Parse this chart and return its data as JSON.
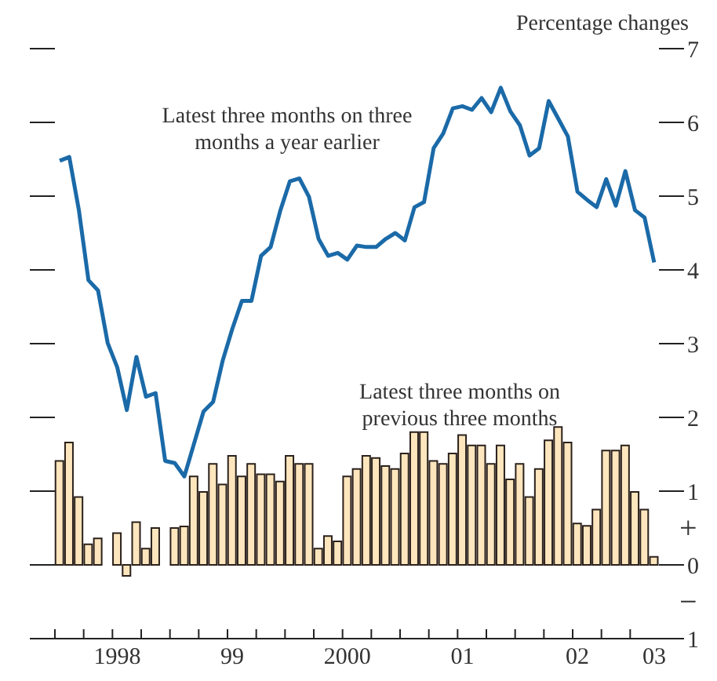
{
  "chart_data": {
    "type": "bar",
    "ylabel": "Percentage changes",
    "categories": [
      null,
      null,
      null,
      null,
      null,
      null,
      "1998",
      null,
      null,
      null,
      null,
      null,
      null,
      null,
      null,
      null,
      null,
      null,
      "99",
      null,
      null,
      null,
      null,
      null,
      null,
      null,
      null,
      null,
      null,
      null,
      "2000",
      null,
      null,
      null,
      null,
      null,
      null,
      null,
      null,
      null,
      null,
      null,
      "01",
      null,
      null,
      null,
      null,
      null,
      null,
      null,
      null,
      null,
      null,
      null,
      "02",
      null,
      null,
      null,
      null,
      null,
      null,
      null,
      "03"
    ],
    "series": [
      {
        "name": "Latest three months on previous three months",
        "color": "#fde6bd",
        "values": [
          1.41,
          1.66,
          0.92,
          0.28,
          0.36,
          null,
          0.43,
          -0.15,
          0.58,
          0.22,
          0.5,
          null,
          0.5,
          0.52,
          1.2,
          0.99,
          1.37,
          1.09,
          1.48,
          1.2,
          1.37,
          1.23,
          1.23,
          1.13,
          1.48,
          1.37,
          1.37,
          0.22,
          0.39,
          0.32,
          1.2,
          1.3,
          1.48,
          1.45,
          1.34,
          1.3,
          1.51,
          1.8,
          1.8,
          1.41,
          1.37,
          1.51,
          1.76,
          1.62,
          1.62,
          1.37,
          1.62,
          1.16,
          1.37,
          0.92,
          1.3,
          1.69,
          1.87,
          1.66,
          0.56,
          0.53,
          0.75,
          1.55,
          1.55,
          1.62,
          0.99,
          0.75,
          0.11
        ]
      },
      {
        "name": "Latest three months on three months a year earlier",
        "type": "line",
        "color": "#1b6aa8",
        "values": [
          5.48,
          5.53,
          4.81,
          3.86,
          3.72,
          3.01,
          2.68,
          2.1,
          2.82,
          2.28,
          2.33,
          1.41,
          1.38,
          1.2,
          1.64,
          2.08,
          2.21,
          2.77,
          3.2,
          3.58,
          3.58,
          4.19,
          4.31,
          4.8,
          5.2,
          5.24,
          4.99,
          4.42,
          4.19,
          4.23,
          4.14,
          4.33,
          4.31,
          4.31,
          4.42,
          4.5,
          4.4,
          4.85,
          4.92,
          5.65,
          5.85,
          6.19,
          6.22,
          6.17,
          6.33,
          6.14,
          6.47,
          6.15,
          5.96,
          5.55,
          5.65,
          6.29,
          6.05,
          5.81,
          5.06,
          4.95,
          4.85,
          5.23,
          4.87,
          5.34,
          4.81,
          4.71,
          4.1
        ]
      }
    ],
    "ylim": [
      -1,
      7
    ],
    "yticks": [
      {
        "value": -1,
        "label": "1"
      },
      0,
      1,
      2,
      3,
      4,
      5,
      6,
      7
    ],
    "annotations": [
      "+",
      "−"
    ]
  }
}
